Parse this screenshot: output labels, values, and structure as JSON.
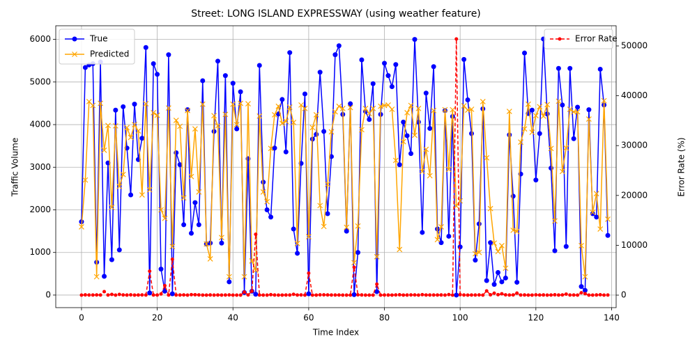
{
  "chart_data": {
    "type": "line",
    "title": "Street: LONG ISLAND EXPRESSWAY (using weather feature)",
    "xlabel": "Time Index",
    "ylabel": "Traffic Volume",
    "y2label": "Error Rate (%)",
    "x": [
      0,
      1,
      2,
      3,
      4,
      5,
      6,
      7,
      8,
      9,
      10,
      11,
      12,
      13,
      14,
      15,
      16,
      17,
      18,
      19,
      20,
      21,
      22,
      23,
      24,
      25,
      26,
      27,
      28,
      29,
      30,
      31,
      32,
      33,
      34,
      35,
      36,
      37,
      38,
      39,
      40,
      41,
      42,
      43,
      44,
      45,
      46,
      47,
      48,
      49,
      50,
      51,
      52,
      53,
      54,
      55,
      56,
      57,
      58,
      59,
      60,
      61,
      62,
      63,
      64,
      65,
      66,
      67,
      68,
      69,
      70,
      71,
      72,
      73,
      74,
      75,
      76,
      77,
      78,
      79,
      80,
      81,
      82,
      83,
      84,
      85,
      86,
      87,
      88,
      89,
      90,
      91,
      92,
      93,
      94,
      95,
      96,
      97,
      98,
      99,
      100,
      101,
      102,
      103,
      104,
      105,
      106,
      107,
      108,
      109,
      110,
      111,
      112,
      113,
      114,
      115,
      116,
      117,
      118,
      119,
      120,
      121,
      122,
      123,
      124,
      125,
      126,
      127,
      128,
      129,
      130,
      131,
      132,
      133,
      134,
      135,
      136,
      137,
      138,
      139
    ],
    "xlim": [
      -6.8,
      141.2
    ],
    "xticks": [
      0,
      20,
      40,
      60,
      80,
      100,
      120,
      140
    ],
    "ylim": [
      -295,
      6320
    ],
    "yticks": [
      0,
      1000,
      2000,
      3000,
      4000,
      5000,
      6000
    ],
    "y2lim": [
      -2510,
      54050
    ],
    "y2ticks": [
      0,
      10000,
      20000,
      30000,
      40000,
      50000
    ],
    "grid": true,
    "legend_loc": "upper left",
    "legend2_loc": "upper right",
    "series": [
      {
        "name": "True",
        "color": "#0000ff",
        "marker": "o",
        "linestyle": "solid",
        "values": [
          1720,
          5340,
          5400,
          5430,
          770,
          5470,
          440,
          3100,
          830,
          4340,
          1060,
          4420,
          3450,
          2350,
          4480,
          3180,
          3680,
          5810,
          50,
          5430,
          5180,
          610,
          90,
          5640,
          30,
          3340,
          3060,
          1650,
          4350,
          1450,
          2170,
          1650,
          5030,
          1200,
          1220,
          3840,
          5490,
          1220,
          5150,
          310,
          4970,
          3900,
          4770,
          60,
          3200,
          90,
          20,
          5390,
          2650,
          2000,
          1830,
          3450,
          4250,
          4590,
          3360,
          5690,
          1550,
          980,
          3090,
          4720,
          30,
          3660,
          3770,
          5230,
          3840,
          1910,
          3250,
          5640,
          5850,
          4240,
          1500,
          4490,
          10,
          1000,
          5520,
          4310,
          4120,
          4960,
          80,
          4240,
          5440,
          5150,
          4890,
          5410,
          3060,
          4060,
          3740,
          3320,
          6000,
          4060,
          1470,
          4740,
          3910,
          5360,
          1550,
          1230,
          4330,
          1380,
          4190,
          0,
          1130,
          5530,
          4580,
          3790,
          820,
          1670,
          4370,
          340,
          1230,
          250,
          530,
          310,
          400,
          3760,
          2320,
          300,
          2840,
          5680,
          4260,
          4340,
          2700,
          3790,
          6010,
          4250,
          2980,
          1040,
          5320,
          4460,
          1140,
          5320,
          3670,
          4410,
          200,
          110,
          4350,
          1910,
          1830,
          5300,
          4460,
          1400
        ]
      },
      {
        "name": "Predicted",
        "color": "#ffa500",
        "marker": "x",
        "linestyle": "solid",
        "values": [
          1600,
          2700,
          4540,
          4450,
          430,
          4500,
          3400,
          3980,
          2060,
          3970,
          2550,
          2830,
          3930,
          3700,
          4000,
          3850,
          2350,
          4490,
          2470,
          4280,
          4220,
          2000,
          1800,
          4390,
          1140,
          4100,
          3960,
          2280,
          4330,
          2780,
          3900,
          2420,
          4480,
          1200,
          850,
          4210,
          3970,
          1350,
          4240,
          430,
          4480,
          4000,
          4500,
          430,
          4490,
          800,
          580,
          4200,
          2420,
          2190,
          3440,
          4230,
          4430,
          4030,
          4080,
          4410,
          4050,
          1210,
          4460,
          4380,
          1370,
          3930,
          4230,
          2100,
          1610,
          2600,
          3830,
          4300,
          4430,
          4380,
          1590,
          4400,
          760,
          1620,
          3880,
          4380,
          4260,
          4380,
          900,
          4430,
          4450,
          4460,
          4360,
          3160,
          1070,
          3600,
          4280,
          4450,
          3750,
          4380,
          2900,
          3420,
          2800,
          4330,
          1300,
          1600,
          4350,
          2950,
          4350,
          2090,
          2210,
          4440,
          4340,
          4360,
          970,
          1000,
          4540,
          3220,
          2030,
          1220,
          1020,
          1160,
          630,
          4310,
          1520,
          1490,
          3590,
          3900,
          4480,
          3820,
          4210,
          4420,
          4200,
          4470,
          3440,
          1740,
          4550,
          2900,
          3450,
          4360,
          4300,
          4300,
          1160,
          430,
          4130,
          1940,
          2380,
          1550,
          4560,
          1780
        ]
      },
      {
        "name": "Error Rate",
        "color": "#ff0000",
        "marker": "o",
        "linestyle": "dashed",
        "axis": "y2",
        "values": [
          7,
          49,
          16,
          18,
          44,
          18,
          700,
          28,
          148,
          9,
          141,
          36,
          14,
          57,
          11,
          21,
          36,
          23,
          4800,
          21,
          19,
          228,
          1900,
          22,
          7200,
          23,
          29,
          38,
          0,
          92,
          80,
          47,
          11,
          0,
          30,
          10,
          28,
          11,
          18,
          39,
          10,
          3,
          6,
          620,
          40,
          790,
          12200,
          22,
          9,
          10,
          88,
          23,
          4,
          12,
          21,
          22,
          161,
          23,
          44,
          7,
          4400,
          7,
          12,
          60,
          58,
          36,
          18,
          24,
          24,
          3,
          6,
          2,
          5600,
          62,
          30,
          2,
          3,
          12,
          2200,
          4,
          18,
          13,
          11,
          42,
          65,
          11,
          14,
          34,
          38,
          8,
          97,
          28,
          28,
          19,
          16,
          30,
          0,
          114,
          4,
          51400,
          96,
          20,
          5,
          15,
          18,
          40,
          4,
          847,
          65,
          388,
          92,
          274,
          58,
          15,
          34,
          397,
          26,
          31,
          5,
          12,
          56,
          17,
          30,
          5,
          15,
          67,
          14,
          35,
          203,
          18,
          17,
          2,
          480,
          291,
          5,
          2,
          30,
          71,
          2,
          27
        ]
      }
    ]
  }
}
